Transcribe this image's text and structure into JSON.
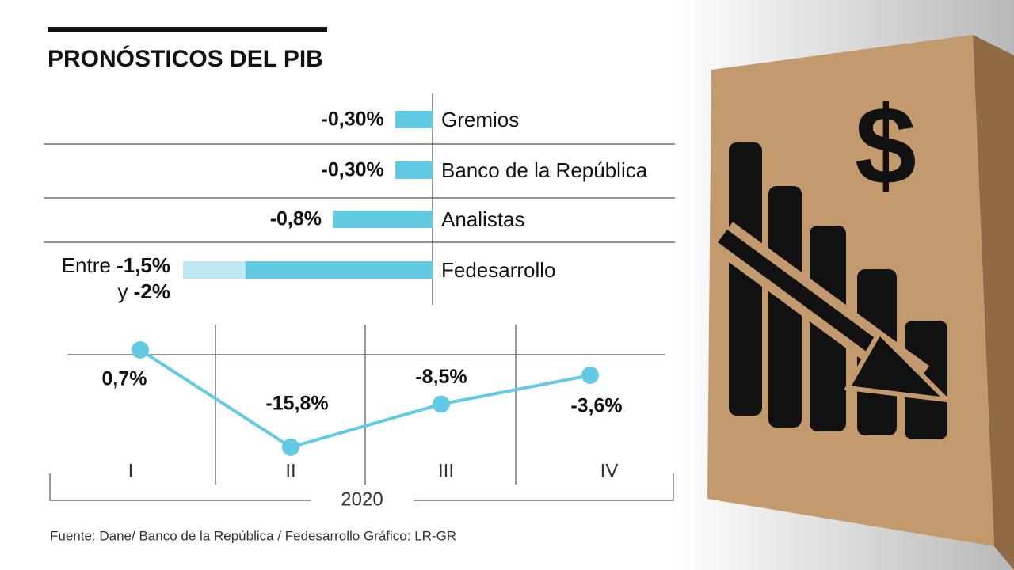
{
  "source": "Fuente: Dane/ Banco de la República / Fedesarrollo   Gráfico: LR-GR",
  "chart_data": [
    {
      "type": "bar",
      "orientation": "horizontal",
      "title": "PRONÓSTICOS DEL PIB",
      "categories": [
        "Gremios",
        "Banco de la República",
        "Analistas",
        "Fedesarrollo"
      ],
      "values": [
        -0.3,
        -0.3,
        -0.8,
        -2
      ],
      "value_labels": [
        "-0,30%",
        "-0,30%",
        "-0,8%",
        "-2%"
      ],
      "range_start": [
        null,
        null,
        null,
        -1.5
      ],
      "range_start_labels": [
        null,
        null,
        null,
        "-1,5%"
      ],
      "range_words": [
        "Entre",
        "y"
      ],
      "color": "#62cbe3",
      "range_color": "#bfe9f2",
      "xlim": [
        -2,
        0
      ]
    },
    {
      "type": "line",
      "categories": [
        "I",
        "II",
        "III",
        "IV"
      ],
      "values": [
        0.7,
        -15.8,
        -8.5,
        -3.6
      ],
      "value_labels": [
        "0,7%",
        "-15,8%",
        "-8,5%",
        "-3,6%"
      ],
      "xlabel": "2020",
      "color": "#62cbe3",
      "ylim": [
        -22,
        5
      ]
    }
  ]
}
